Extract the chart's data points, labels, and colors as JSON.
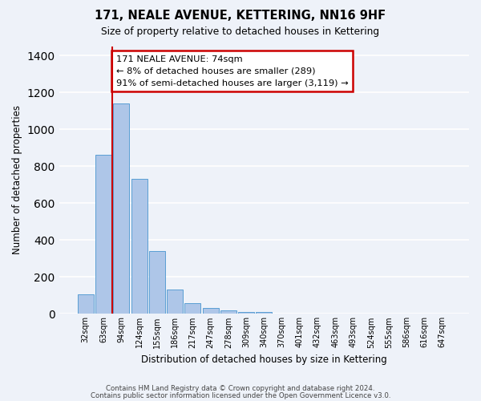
{
  "title": "171, NEALE AVENUE, KETTERING, NN16 9HF",
  "subtitle": "Size of property relative to detached houses in Kettering",
  "xlabel": "Distribution of detached houses by size in Kettering",
  "ylabel": "Number of detached properties",
  "bar_values": [
    105,
    860,
    1140,
    730,
    340,
    130,
    60,
    30,
    20,
    10,
    10,
    0,
    0,
    0,
    0,
    0,
    0,
    0,
    0,
    0,
    0
  ],
  "bin_labels": [
    "32sqm",
    "63sqm",
    "94sqm",
    "124sqm",
    "155sqm",
    "186sqm",
    "217sqm",
    "247sqm",
    "278sqm",
    "309sqm",
    "340sqm",
    "370sqm",
    "401sqm",
    "432sqm",
    "463sqm",
    "493sqm",
    "524sqm",
    "555sqm",
    "586sqm",
    "616sqm",
    "647sqm"
  ],
  "bar_color": "#aec6e8",
  "bar_edge_color": "#5a9fd4",
  "vline_color": "#cc0000",
  "vline_bin_index": 1.5,
  "annotation_text": "171 NEALE AVENUE: 74sqm\n← 8% of detached houses are smaller (289)\n91% of semi-detached houses are larger (3,119) →",
  "annotation_box_color": "#ffffff",
  "annotation_box_edge": "#cc0000",
  "ylim": [
    0,
    1450
  ],
  "yticks": [
    0,
    200,
    400,
    600,
    800,
    1000,
    1200,
    1400
  ],
  "footer1": "Contains HM Land Registry data © Crown copyright and database right 2024.",
  "footer2": "Contains public sector information licensed under the Open Government Licence v3.0.",
  "bg_color": "#eef2f9",
  "grid_color": "#ffffff"
}
